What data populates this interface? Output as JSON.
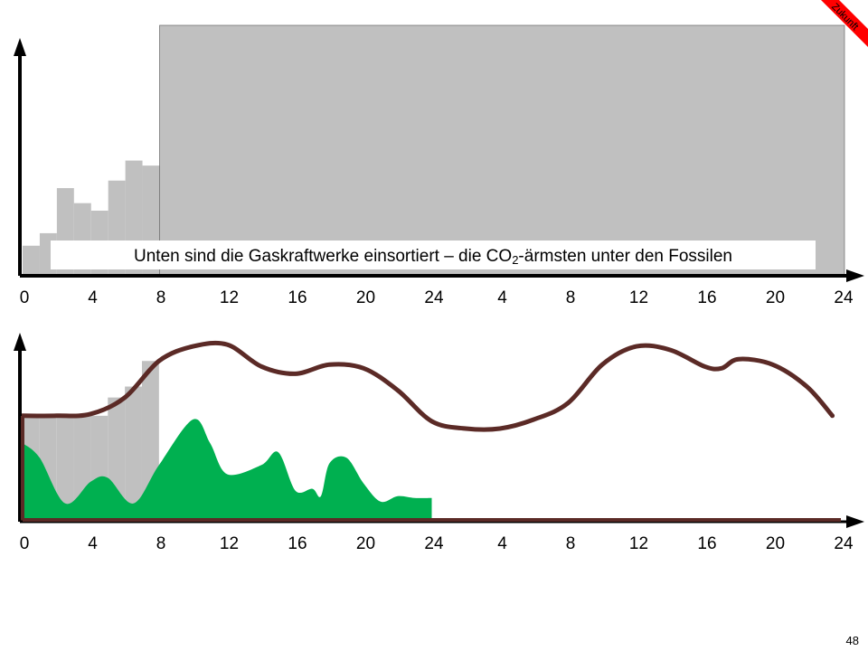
{
  "slide": {
    "badge_label": "Zukunft",
    "page_number": "48",
    "caption_before": "Unten sind die Gaskraftwerke einsortiert – die CO",
    "caption_sub": "2",
    "caption_after": "-ärmsten unter den Fossilen"
  },
  "colors": {
    "gas_gray": "#c0c0c0",
    "renewable_green": "#00b050",
    "demand_line": "#5b2a26",
    "axis": "#000000",
    "badge_red": "#ff0000"
  },
  "chart_data": [
    {
      "type": "area",
      "name": "top",
      "x_tick_labels": [
        "0",
        "4",
        "8",
        "12",
        "16",
        "20",
        "24",
        "4",
        "8",
        "12",
        "16",
        "20",
        "24"
      ],
      "xlim": [
        0,
        48
      ],
      "ylim": [
        0,
        100
      ],
      "gas_steps": [
        {
          "x": 0,
          "y": 12
        },
        {
          "x": 1,
          "y": 17
        },
        {
          "x": 2,
          "y": 35
        },
        {
          "x": 3,
          "y": 29
        },
        {
          "x": 4,
          "y": 26
        },
        {
          "x": 5,
          "y": 38
        },
        {
          "x": 6,
          "y": 46
        },
        {
          "x": 7,
          "y": 44
        }
      ],
      "gas_block": {
        "x0": 8,
        "x1": 48,
        "top": 100
      }
    },
    {
      "type": "area",
      "name": "bottom",
      "x_tick_labels": [
        "0",
        "4",
        "8",
        "12",
        "16",
        "20",
        "24",
        "4",
        "8",
        "12",
        "16",
        "20",
        "24"
      ],
      "xlim": [
        0,
        48
      ],
      "ylim": [
        0,
        100
      ],
      "demand": [
        [
          0,
          58
        ],
        [
          2,
          58
        ],
        [
          4,
          59
        ],
        [
          6,
          68
        ],
        [
          8,
          88
        ],
        [
          10,
          96
        ],
        [
          12,
          97
        ],
        [
          14,
          85
        ],
        [
          16,
          81
        ],
        [
          18,
          86
        ],
        [
          20,
          84
        ],
        [
          22,
          72
        ],
        [
          24,
          55
        ],
        [
          26,
          51
        ],
        [
          28,
          51
        ],
        [
          30,
          56
        ],
        [
          32,
          65
        ],
        [
          34,
          86
        ],
        [
          36,
          96
        ],
        [
          38,
          94
        ],
        [
          40,
          85
        ],
        [
          41,
          84
        ],
        [
          42,
          89
        ],
        [
          44,
          86
        ],
        [
          46,
          74
        ],
        [
          47.5,
          58
        ]
      ],
      "renewable": [
        [
          0,
          43
        ],
        [
          1,
          35
        ],
        [
          2.5,
          10
        ],
        [
          4,
          22
        ],
        [
          5,
          24
        ],
        [
          6.5,
          10
        ],
        [
          8,
          31
        ],
        [
          10,
          56
        ],
        [
          11,
          43
        ],
        [
          12,
          26
        ],
        [
          14,
          31
        ],
        [
          15,
          38
        ],
        [
          16,
          17
        ],
        [
          17,
          18
        ],
        [
          17.5,
          14
        ],
        [
          18,
          32
        ],
        [
          19,
          35
        ],
        [
          20,
          21
        ],
        [
          21,
          11
        ],
        [
          22,
          14
        ],
        [
          23,
          13
        ],
        [
          24,
          13
        ]
      ],
      "gas_fill_steps": [
        {
          "x": 0,
          "y": 58
        },
        {
          "x": 1,
          "y": 58
        },
        {
          "x": 2,
          "y": 58
        },
        {
          "x": 3,
          "y": 58
        },
        {
          "x": 4,
          "y": 58
        },
        {
          "x": 5,
          "y": 68
        },
        {
          "x": 6,
          "y": 74
        },
        {
          "x": 7,
          "y": 88
        }
      ]
    }
  ]
}
